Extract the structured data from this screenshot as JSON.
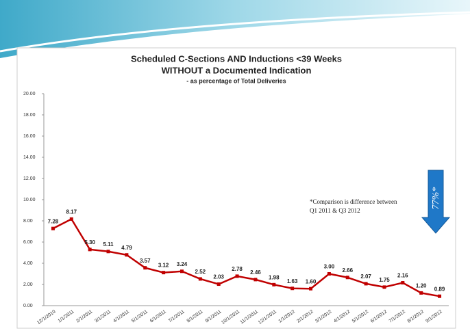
{
  "chart_data": {
    "type": "line",
    "title": "Scheduled C-Sections AND Inductions <39 Weeks",
    "subtitle": "WITHOUT a Documented Indication",
    "subtitle2": "- as percentage of Total Deliveries",
    "categories": [
      "12/1/2010",
      "1/1/2011",
      "2/1/2011",
      "3/1/2011",
      "4/1/2011",
      "5/1/2011",
      "6/1/2011",
      "7/1/2011",
      "8/1/2011",
      "9/1/2011",
      "10/1/2011",
      "11/1/2011",
      "12/1/2011",
      "1/1/2012",
      "2/1/2012",
      "3/1/2012",
      "4/1/2012",
      "5/1/2012",
      "6/1/2012",
      "7/1/2012",
      "8/1/2012",
      "9/1/2012"
    ],
    "values": [
      7.28,
      8.17,
      5.3,
      5.11,
      4.79,
      3.57,
      3.12,
      3.24,
      2.52,
      2.03,
      2.78,
      2.46,
      1.98,
      1.63,
      1.6,
      3.0,
      2.66,
      2.07,
      1.75,
      2.16,
      1.2,
      0.89
    ],
    "value_labels": [
      "7.28",
      "8.17",
      "5.30",
      "5.11",
      "4.79",
      "3.57",
      "3.12",
      "3.24",
      "2.52",
      "2.03",
      "2.78",
      "2.46",
      "1.98",
      "1.63",
      "1.60",
      "3.00",
      "2.66",
      "2.07",
      "1.75",
      "2.16",
      "1.20",
      "0.89"
    ],
    "color": "#c00000",
    "ylim": [
      0,
      20
    ],
    "yticks": [
      {
        "value": 0,
        "label": "0.00"
      },
      {
        "value": 2,
        "label": "2.00"
      },
      {
        "value": 4,
        "label": "4.00"
      },
      {
        "value": 6,
        "label": "6.00"
      },
      {
        "value": 8,
        "label": "8.00"
      },
      {
        "value": 10,
        "label": "10.00"
      },
      {
        "value": 12,
        "label": "12.00"
      },
      {
        "value": 14,
        "label": "14.00"
      },
      {
        "value": 16,
        "label": "16.00"
      },
      {
        "value": 18,
        "label": "18.00"
      },
      {
        "value": 20,
        "label": "20.00"
      }
    ],
    "annotation": "*Comparison is difference between",
    "annotation2": "Q1 2011 & Q3 2012",
    "arrow_label": "77%*"
  }
}
